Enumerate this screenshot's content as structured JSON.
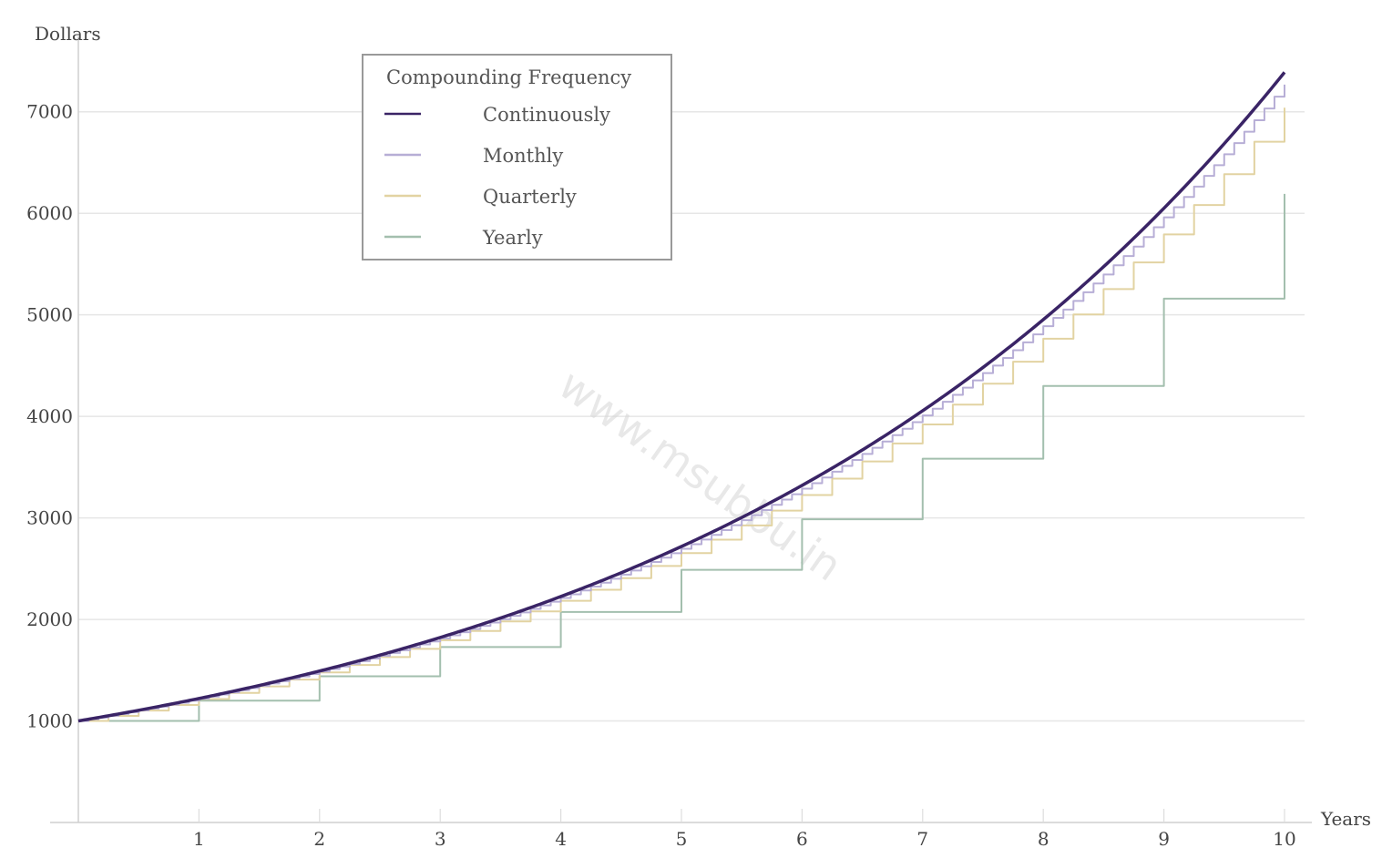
{
  "chart_data": {
    "type": "line",
    "title": "",
    "xlabel": "Years",
    "ylabel": "Dollars",
    "xlim": [
      0,
      10
    ],
    "ylim": [
      0,
      7500
    ],
    "x_ticks": [
      "1",
      "2",
      "3",
      "4",
      "5",
      "6",
      "7",
      "8",
      "9",
      "10"
    ],
    "y_ticks": [
      "1000",
      "2000",
      "3000",
      "4000",
      "5000",
      "6000",
      "7000"
    ],
    "grid": "horizontal",
    "principal": 1000,
    "annual_rate": 0.2,
    "legend": {
      "title": "Compounding Frequency",
      "placement": "top-center"
    },
    "series": [
      {
        "name": "Continuously",
        "compounds_per_year": "continuous",
        "color": "#3a2466",
        "x": [
          0,
          1,
          2,
          3,
          4,
          5,
          6,
          7,
          8,
          9,
          10
        ],
        "y": [
          1000,
          1221,
          1492,
          1822,
          2226,
          2718,
          3320,
          4055,
          4953,
          6050,
          7389
        ]
      },
      {
        "name": "Monthly",
        "compounds_per_year": 12,
        "color": "#b7aed6",
        "x": [
          0,
          1,
          2,
          3,
          4,
          5,
          6,
          7,
          8,
          9,
          10
        ],
        "y": [
          1000,
          1219,
          1486,
          1811,
          2208,
          2692,
          3281,
          4000,
          4876,
          5944,
          7244
        ]
      },
      {
        "name": "Quarterly",
        "compounds_per_year": 4,
        "color": "#e2d3a2",
        "x": [
          0,
          1,
          2,
          3,
          4,
          5,
          6,
          7,
          8,
          9,
          10
        ],
        "y": [
          1000,
          1216,
          1477,
          1796,
          2183,
          2653,
          3225,
          3920,
          4765,
          5792,
          7040
        ]
      },
      {
        "name": "Yearly",
        "compounds_per_year": 1,
        "color": "#a3bfae",
        "x": [
          0,
          1,
          2,
          3,
          4,
          5,
          6,
          7,
          8,
          9,
          10
        ],
        "y": [
          1000,
          1200,
          1440,
          1728,
          2074,
          2488,
          2986,
          3583,
          4300,
          5160,
          6192
        ]
      }
    ]
  },
  "watermark": "www.msubbu.in"
}
